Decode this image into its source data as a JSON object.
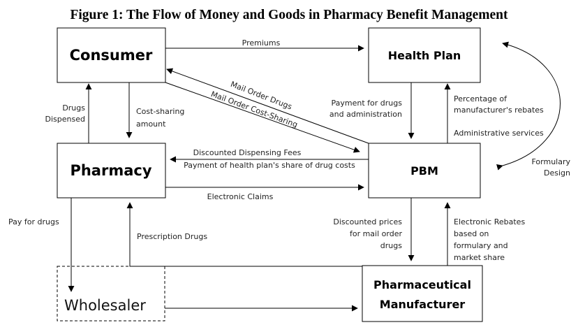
{
  "title": "Figure 1: The Flow of Money and Goods in Pharmacy Benefit Management",
  "nodes": {
    "consumer": "Consumer",
    "health_plan": "Health Plan",
    "pharmacy": "Pharmacy",
    "pbm": "PBM",
    "manufacturer_line1": "Pharmaceutical",
    "manufacturer_line2": "Manufacturer",
    "wholesaler": "Wholesaler"
  },
  "edges": {
    "premiums": "Premiums",
    "mail_order_drugs": "Mail Order Drugs",
    "mail_order_cost_sharing": "Mail Order Cost-Sharing",
    "drugs_dispensed_1": "Drugs",
    "drugs_dispensed_2": "Dispensed",
    "cost_sharing_1": "Cost-sharing",
    "cost_sharing_2": "amount",
    "payment_drugs_1": "Payment for drugs",
    "payment_drugs_2": "and administration",
    "pct_rebates_1": "Percentage of",
    "pct_rebates_2": "manufacturer's rebates",
    "admin_services": "Administrative services",
    "formulary_1": "Formulary",
    "formulary_2": "Design",
    "discounted_fees": "Discounted Dispensing Fees",
    "payment_share": "Payment of health plan's share of drug costs",
    "electronic_claims": "Electronic Claims",
    "pay_for_drugs": "Pay for drugs",
    "prescription_drugs": "Prescription Drugs",
    "discounted_prices_1": "Discounted prices",
    "discounted_prices_2": "for mail order",
    "discounted_prices_3": "drugs",
    "electronic_rebates_1": "Electronic Rebates",
    "electronic_rebates_2": "based on",
    "electronic_rebates_3": "formulary and",
    "electronic_rebates_4": "market share"
  }
}
